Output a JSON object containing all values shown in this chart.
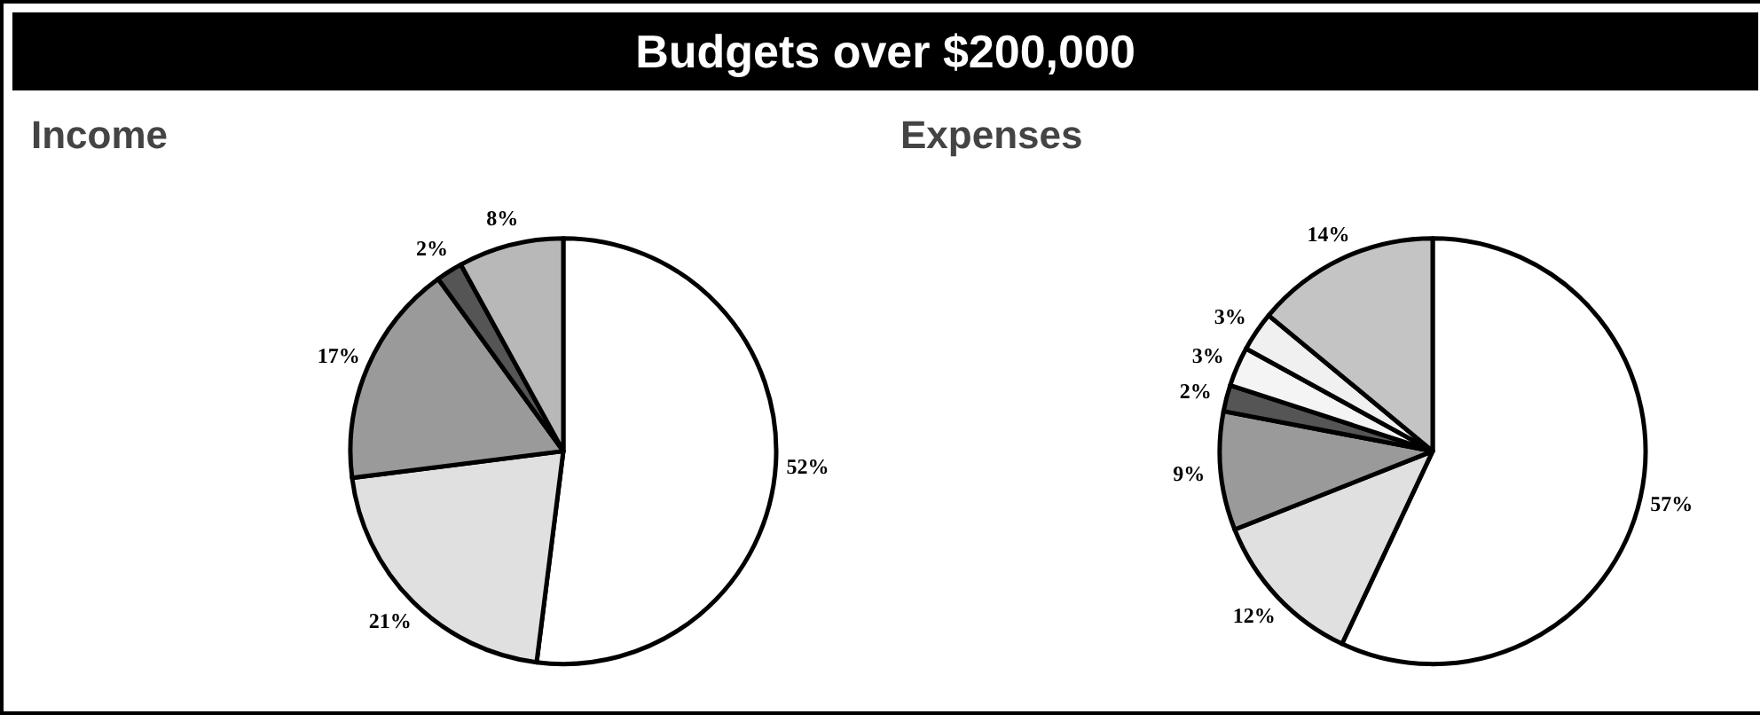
{
  "chart_data": [
    {
      "type": "pie",
      "title": "Budgets over $200,000",
      "subtitle": "Income",
      "categories": [
        null,
        null,
        null,
        null,
        null
      ],
      "values": [
        52,
        21,
        17,
        2,
        8
      ],
      "value_labels": [
        "52%",
        "21%",
        "17%",
        "2%",
        "8%"
      ],
      "colors": [
        "#ffffff",
        "#e0e0e0",
        "#9a9a9a",
        "#555555",
        "#b8b8b8"
      ]
    },
    {
      "type": "pie",
      "subtitle": "Expenses",
      "categories": [
        null,
        null,
        null,
        null,
        null,
        null,
        null
      ],
      "values": [
        57,
        12,
        9,
        2,
        3,
        3,
        14
      ],
      "value_labels": [
        "57%",
        "12%",
        "9%",
        "2%",
        "3%",
        "3%",
        "14%"
      ],
      "colors": [
        "#ffffff",
        "#e0e0e0",
        "#9a9a9a",
        "#555555",
        "#f4f4f4",
        "#f0f0f0",
        "#c4c4c4"
      ]
    }
  ]
}
